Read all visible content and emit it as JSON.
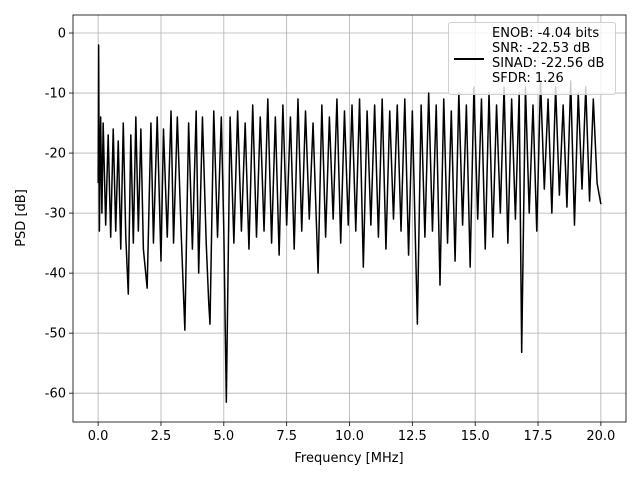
{
  "chart_data": {
    "type": "line",
    "xlabel": "Frequency [MHz]",
    "ylabel": "PSD [dB]",
    "x": [
      0,
      0.02,
      0.05,
      0.1,
      0.15,
      0.2,
      0.3,
      0.4,
      0.5,
      0.6,
      0.7,
      0.8,
      0.9,
      1.0,
      1.1,
      1.2,
      1.3,
      1.4,
      1.5,
      1.6,
      1.7,
      1.8,
      1.95,
      2.1,
      2.2,
      2.35,
      2.5,
      2.6,
      2.75,
      2.9,
      3.0,
      3.15,
      3.3,
      3.45,
      3.6,
      3.75,
      3.9,
      4.0,
      4.15,
      4.3,
      4.4,
      4.45,
      4.6,
      4.75,
      4.9,
      5.0,
      5.1,
      5.25,
      5.4,
      5.55,
      5.7,
      5.85,
      6.0,
      6.15,
      6.3,
      6.45,
      6.6,
      6.75,
      6.9,
      7.05,
      7.2,
      7.35,
      7.5,
      7.65,
      7.8,
      7.95,
      8.1,
      8.25,
      8.4,
      8.55,
      8.75,
      8.9,
      9.05,
      9.2,
      9.35,
      9.5,
      9.65,
      9.8,
      9.95,
      10.1,
      10.25,
      10.4,
      10.55,
      10.7,
      10.85,
      11.0,
      11.15,
      11.3,
      11.45,
      11.6,
      11.75,
      11.9,
      12.05,
      12.2,
      12.35,
      12.5,
      12.7,
      12.85,
      13.0,
      13.15,
      13.3,
      13.45,
      13.6,
      13.75,
      13.9,
      14.05,
      14.2,
      14.35,
      14.5,
      14.65,
      14.8,
      14.95,
      15.1,
      15.25,
      15.4,
      15.55,
      15.7,
      15.85,
      16.0,
      16.15,
      16.3,
      16.45,
      16.6,
      16.75,
      16.85,
      17.0,
      17.15,
      17.3,
      17.45,
      17.6,
      17.75,
      17.9,
      18.05,
      18.2,
      18.35,
      18.5,
      18.65,
      18.8,
      18.95,
      19.1,
      19.25,
      19.4,
      19.55,
      19.7,
      19.85,
      20.0
    ],
    "series": [
      {
        "name": "ENOB: -4.04 bits\nSNR: -22.53 dB\nSINAD: -22.56 dB\nSFDR: 1.26",
        "color": "#000000",
        "values": [
          -25,
          -2,
          -33,
          -14,
          -30,
          -15,
          -32,
          -17,
          -34,
          -16,
          -33,
          -18,
          -36,
          -15,
          -34,
          -43.5,
          -17,
          -35,
          -14,
          -33,
          -16,
          -36,
          -42.5,
          -15,
          -35,
          -14,
          -38,
          -16,
          -34,
          -13,
          -35,
          -14,
          -33,
          -49.5,
          -15,
          -36,
          -13,
          -40,
          -14,
          -35,
          -45,
          -48.5,
          -13,
          -34,
          -14,
          -33,
          -61.5,
          -14,
          -35,
          -13,
          -33,
          -15,
          -36,
          -12,
          -34,
          -14,
          -33,
          -11,
          -35,
          -14,
          -37,
          -12,
          -32,
          -14,
          -36,
          -11,
          -33,
          -13,
          -31,
          -15,
          -40,
          -12,
          -34,
          -14,
          -31,
          -11,
          -35,
          -13,
          -32,
          -12,
          -33,
          -11,
          -39,
          -13,
          -32,
          -12,
          -34,
          -11,
          -36,
          -13,
          -31,
          -12,
          -33,
          -11,
          -37,
          -13,
          -48.5,
          -12,
          -34,
          -10,
          -33,
          -12,
          -42,
          -11,
          -35,
          -13,
          -38,
          -10,
          -32,
          -12,
          -39,
          -9,
          -31,
          -11,
          -36,
          -10,
          -34,
          -12,
          -30,
          -9,
          -35,
          -11,
          -31,
          -10,
          -53.2,
          -9,
          -30,
          -12,
          -33,
          -8,
          -26,
          -11,
          -30,
          -9,
          -27,
          -12,
          -29,
          -8,
          -32,
          -10,
          -26,
          -9,
          -28,
          -11,
          -25,
          -28.5
        ]
      }
    ],
    "xlim": [
      -1,
      21
    ],
    "xticks": [
      {
        "value": 0,
        "label": "0.0"
      },
      2.5,
      {
        "value": 5,
        "label": "5.0"
      },
      7.5,
      {
        "value": 10,
        "label": "10.0"
      },
      12.5,
      {
        "value": 15,
        "label": "15.0"
      },
      17.5,
      {
        "value": 20,
        "label": "20.0"
      }
    ],
    "ylim": [
      -64.8,
      3
    ],
    "yticks": [
      0,
      -10,
      -20,
      -30,
      -40,
      -50,
      -60
    ],
    "grid": true,
    "legend": "upper right"
  }
}
